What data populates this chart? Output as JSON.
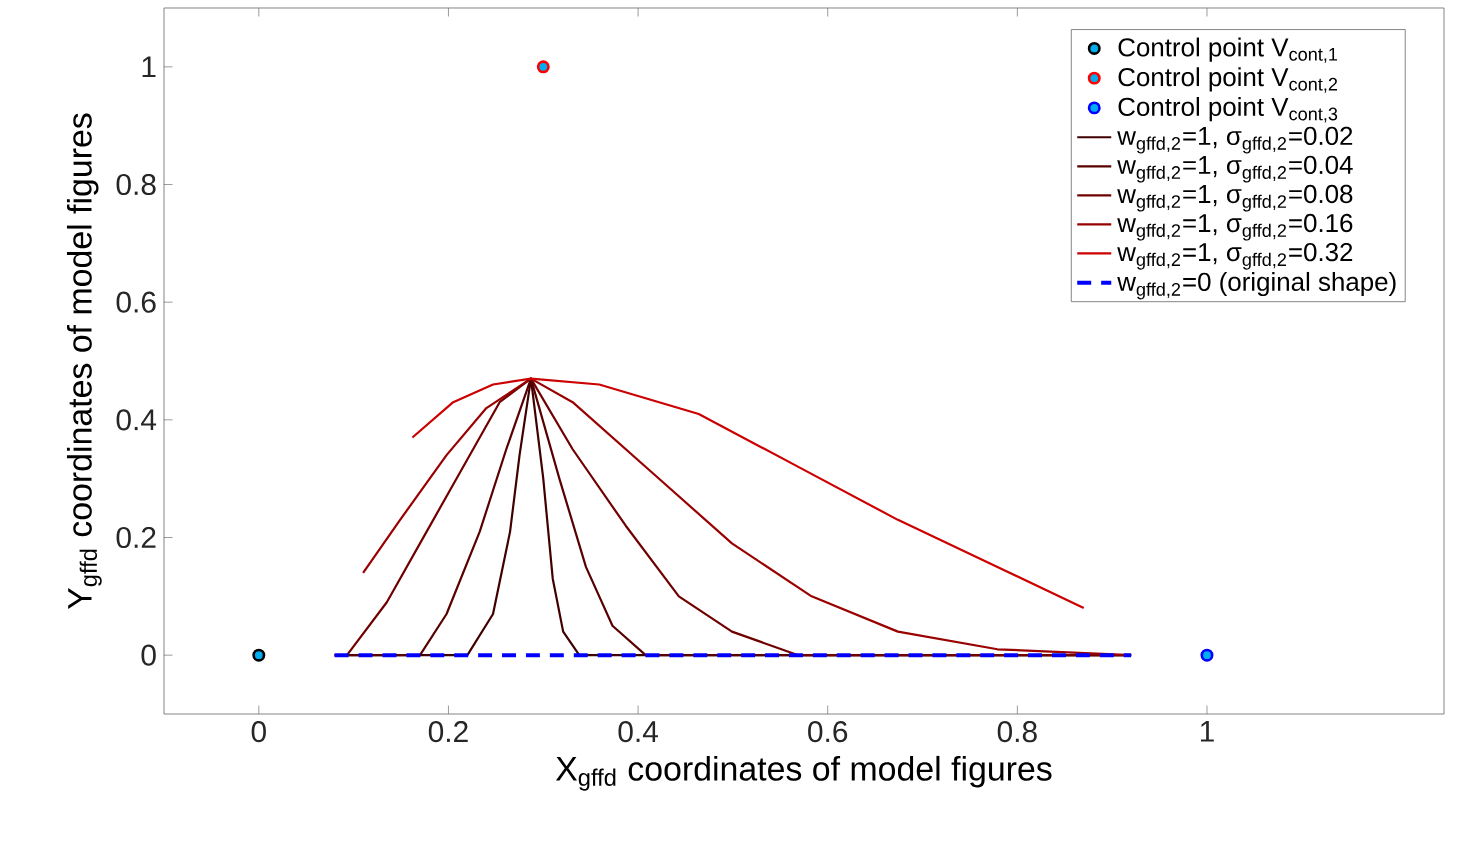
{
  "chart_data": {
    "type": "line",
    "xlabel": "X$_{gffd}$ coordinates of model figures",
    "ylabel": "Y$_{gffd}$ coordinates of model figures",
    "xlim": [
      -0.1,
      1.25
    ],
    "ylim": [
      -0.1,
      1.1
    ],
    "xticks": [
      0,
      0.2,
      0.4,
      0.6,
      0.8,
      1
    ],
    "yticks": [
      0,
      0.2,
      0.4,
      0.6,
      0.8,
      1
    ],
    "legend": "top right",
    "grid": false,
    "series": [
      {
        "name": "Control point V$_{cont,1}$",
        "type": "scatter",
        "marker": "circle",
        "color": "#000000",
        "x": [
          0
        ],
        "values": [
          0
        ]
      },
      {
        "name": "Control point V$_{cont,2}$",
        "type": "scatter",
        "marker": "circle",
        "color": "#ff0000",
        "x": [
          0.3
        ],
        "values": [
          1
        ]
      },
      {
        "name": "Control point V$_{cont,3}$",
        "type": "scatter",
        "marker": "circle",
        "color": "#0000ff",
        "x": [
          1
        ],
        "values": [
          0
        ]
      },
      {
        "name": "w$_{gffd,2}$=1, σ$_{gffd,2}$=0.02",
        "color": "#400000",
        "x": [
          0.08,
          0.22,
          0.247,
          0.265,
          0.275,
          0.287,
          0.3,
          0.31,
          0.321,
          0.338,
          0.92
        ],
        "values": [
          0,
          0,
          0.07,
          0.21,
          0.34,
          0.47,
          0.3,
          0.13,
          0.04,
          0,
          0
        ]
      },
      {
        "name": "w$_{gffd,2}$=1, σ$_{gffd,2}$=0.04",
        "color": "#580000",
        "x": [
          0.08,
          0.17,
          0.198,
          0.233,
          0.261,
          0.287,
          0.317,
          0.345,
          0.373,
          0.408,
          0.92
        ],
        "values": [
          0,
          0,
          0.07,
          0.21,
          0.35,
          0.47,
          0.3,
          0.15,
          0.05,
          0,
          0
        ]
      },
      {
        "name": "w$_{gffd,2}$=1, σ$_{gffd,2}$=0.08",
        "color": "#700000",
        "x": [
          0.08,
          0.093,
          0.135,
          0.177,
          0.219,
          0.254,
          0.287,
          0.331,
          0.387,
          0.443,
          0.499,
          0.569,
          0.92
        ],
        "values": [
          0,
          0,
          0.09,
          0.21,
          0.33,
          0.43,
          0.47,
          0.35,
          0.22,
          0.1,
          0.04,
          0,
          0
        ]
      },
      {
        "name": "w$_{gffd,2}$=1, σ$_{gffd,2}$=0.16",
        "color": "#990000",
        "x": [
          0.11,
          0.149,
          0.198,
          0.24,
          0.287,
          0.331,
          0.415,
          0.499,
          0.583,
          0.674,
          0.779,
          0.92
        ],
        "values": [
          0.14,
          0.23,
          0.34,
          0.42,
          0.47,
          0.43,
          0.31,
          0.19,
          0.1,
          0.04,
          0.01,
          0
        ]
      },
      {
        "name": "w$_{gffd,2}$=1, σ$_{gffd,2}$=0.32",
        "color": "#cc0000",
        "x": [
          0.162,
          0.205,
          0.247,
          0.287,
          0.359,
          0.464,
          0.569,
          0.674,
          0.779,
          0.87
        ],
        "values": [
          0.37,
          0.43,
          0.46,
          0.47,
          0.46,
          0.41,
          0.32,
          0.23,
          0.15,
          0.08
        ]
      },
      {
        "name": "w$_{gffd,2}$=0 (original shape)",
        "color": "#0000ff",
        "line_style": "dashed",
        "x": [
          0.08,
          0.92
        ],
        "values": [
          0,
          0
        ]
      }
    ]
  }
}
